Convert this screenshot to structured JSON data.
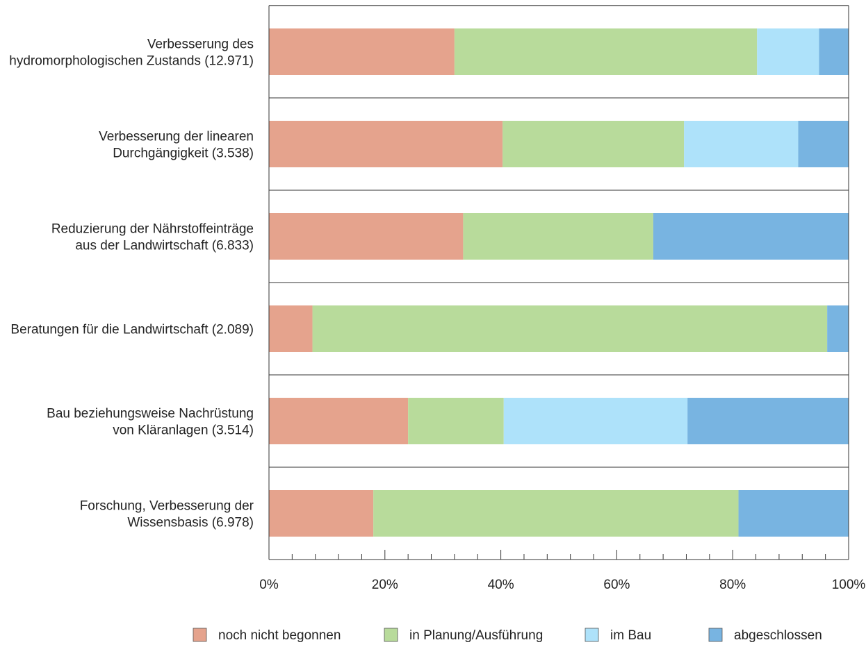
{
  "chart_data": {
    "type": "bar",
    "orientation": "horizontal",
    "stacked": true,
    "normalized": true,
    "title": "",
    "xlabel": "",
    "ylabel": "",
    "xlim": [
      0,
      100
    ],
    "x_ticks": [
      "0%",
      "20%",
      "40%",
      "60%",
      "80%",
      "100%"
    ],
    "grid": "horizontal separators between categories",
    "legend_position": "bottom",
    "categories": [
      [
        "Verbesserung des",
        "hydromorphologischen Zustands (12.971)"
      ],
      [
        "Verbesserung der linearen",
        "Durchgängigkeit (3.538)"
      ],
      [
        "Reduzierung der Nährstoffeinträge",
        "aus der Landwirtschaft (6.833)"
      ],
      [
        "Beratungen für die Landwirtschaft (2.089)"
      ],
      [
        "Bau beziehungsweise Nachrüstung",
        "von Kläranlagen (3.514)"
      ],
      [
        "Forschung, Verbesserung der",
        "Wissensbasis (6.978)"
      ]
    ],
    "series": [
      {
        "name": "noch nicht begonnen",
        "color": "#e5a38d",
        "values": [
          32,
          40.3,
          33.5,
          7.5,
          24,
          18
        ]
      },
      {
        "name": "in Planung/Ausführung",
        "color": "#b8db9b",
        "values": [
          52.2,
          31.3,
          32.8,
          88.8,
          16.5,
          63
        ]
      },
      {
        "name": "im Bau",
        "color": "#aee2fa",
        "values": [
          10.7,
          19.7,
          0,
          0,
          31.7,
          0
        ]
      },
      {
        "name": "abgeschlossen",
        "color": "#78b4e1",
        "values": [
          5.1,
          8.7,
          33.7,
          3.7,
          27.8,
          19
        ]
      }
    ]
  }
}
